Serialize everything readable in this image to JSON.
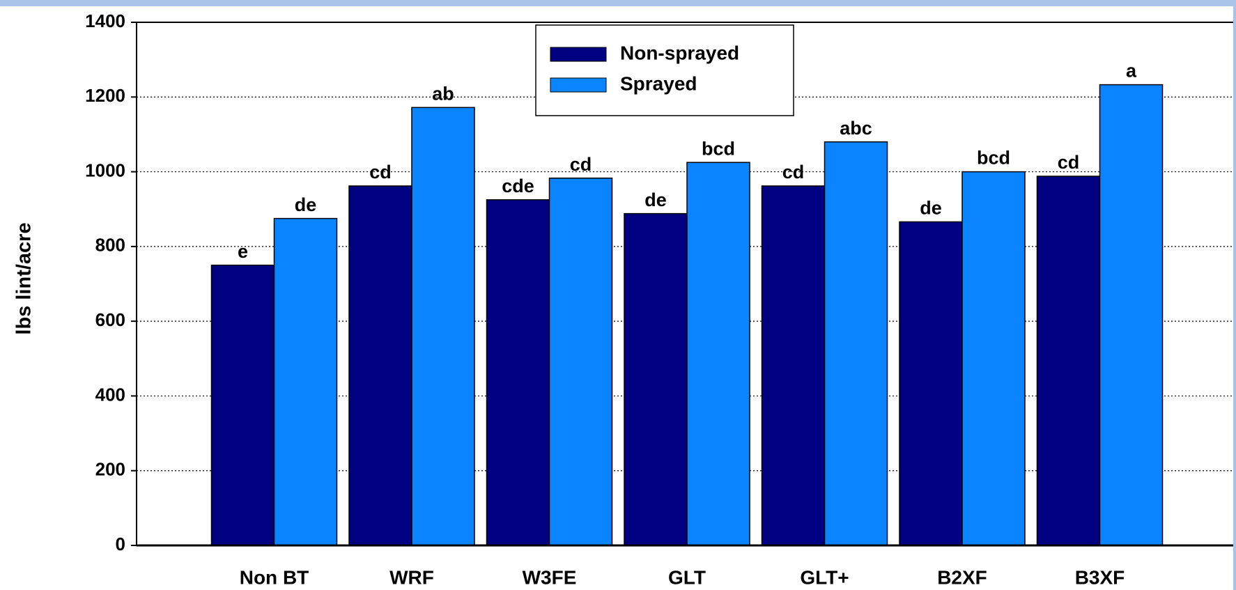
{
  "chart_data": {
    "type": "bar",
    "ylabel": "lbs lint/acre",
    "categories": [
      "Non BT",
      "WRF",
      "W3FE",
      "GLT",
      "GLT+",
      "B2XF",
      "B3XF"
    ],
    "series": [
      {
        "name": "Non-sprayed",
        "color": "#000080",
        "values": [
          750,
          962,
          925,
          888,
          962,
          866,
          988
        ],
        "letters": [
          "e",
          "cd",
          "cde",
          "de",
          "cd",
          "de",
          "cd"
        ]
      },
      {
        "name": "Sprayed",
        "color": "#0a84ff",
        "values": [
          875,
          1172,
          983,
          1025,
          1080,
          1000,
          1233
        ],
        "letters": [
          "de",
          "ab",
          "cd",
          "bcd",
          "abc",
          "bcd",
          "a"
        ]
      }
    ],
    "ylim": [
      0,
      1400
    ],
    "yticks": [
      0,
      200,
      400,
      600,
      800,
      1000,
      1200,
      1400
    ],
    "grid": true,
    "legend": "top"
  }
}
